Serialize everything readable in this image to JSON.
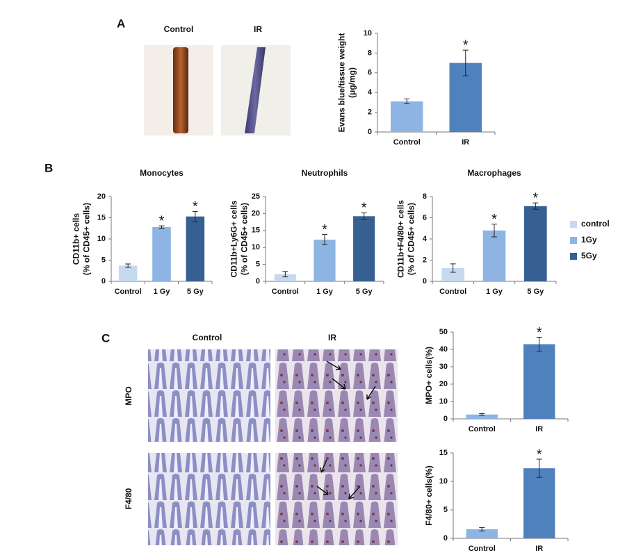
{
  "figure": {
    "panel_labels": [
      "A",
      "B",
      "C"
    ],
    "a_image_labels": [
      "Control",
      "IR"
    ],
    "c_column_labels": [
      "Control",
      "IR"
    ],
    "c_row_labels": [
      "MPO",
      "F4/80"
    ]
  },
  "chart_data": [
    {
      "type": "bar",
      "ylabel": [
        "Evans blue/tissue weight",
        "(μg/mg)"
      ],
      "categories": [
        "Control",
        "IR"
      ],
      "values": [
        3.1,
        7.0
      ],
      "errors": [
        0.25,
        1.3
      ],
      "colors": [
        "#8db4e2",
        "#4f81bd"
      ],
      "significance": [
        null,
        "*"
      ],
      "ylim": [
        0,
        10
      ],
      "yticks": [
        0,
        2,
        4,
        6,
        8,
        10
      ],
      "grid": false
    },
    {
      "type": "bar",
      "title": "Monocytes",
      "ylabel": [
        "CD11b+ cells",
        "(% of CD45+ cells)"
      ],
      "categories": [
        "Control",
        "1 Gy",
        "5 Gy"
      ],
      "values": [
        3.7,
        12.8,
        15.3
      ],
      "errors": [
        0.4,
        0.3,
        1.2
      ],
      "colors": [
        "#c6d9f1",
        "#8db4e2",
        "#366092"
      ],
      "significance": [
        null,
        "*",
        "*"
      ],
      "ylim": [
        0,
        20
      ],
      "yticks": [
        0,
        5,
        10,
        15,
        20
      ],
      "grid": false
    },
    {
      "type": "bar",
      "title": "Neutrophils",
      "ylabel": [
        "CD11b+Ly6G+ cells",
        "(% of CD45+ cells)"
      ],
      "categories": [
        "Control",
        "1 Gy",
        "5 Gy"
      ],
      "values": [
        2.1,
        12.3,
        19.2
      ],
      "errors": [
        0.8,
        1.5,
        1.0
      ],
      "colors": [
        "#c6d9f1",
        "#8db4e2",
        "#366092"
      ],
      "significance": [
        null,
        "*",
        "*"
      ],
      "ylim": [
        0,
        25
      ],
      "yticks": [
        0,
        5,
        10,
        15,
        20,
        25
      ],
      "grid": false
    },
    {
      "type": "bar",
      "title": "Macrophages",
      "ylabel": [
        "CD11b+F4/80+ cells",
        "(% of CD45+ cells)"
      ],
      "categories": [
        "Control",
        "1 Gy",
        "5 Gy"
      ],
      "values": [
        1.25,
        4.8,
        7.1
      ],
      "errors": [
        0.4,
        0.6,
        0.3
      ],
      "colors": [
        "#c6d9f1",
        "#8db4e2",
        "#366092"
      ],
      "significance": [
        null,
        "*",
        "*"
      ],
      "ylim": [
        0,
        8
      ],
      "yticks": [
        0,
        2,
        4,
        6,
        8
      ],
      "grid": false,
      "legend": [
        {
          "name": "control",
          "color": "#c6d9f1"
        },
        {
          "name": "1Gy",
          "color": "#8db4e2"
        },
        {
          "name": "5Gy",
          "color": "#366092"
        }
      ]
    },
    {
      "type": "bar",
      "ylabel": [
        "MPO+ cells(%)"
      ],
      "categories": [
        "Control",
        "IR"
      ],
      "values": [
        2.5,
        43
      ],
      "errors": [
        0.5,
        4
      ],
      "colors": [
        "#8db4e2",
        "#4f81bd"
      ],
      "significance": [
        null,
        "*"
      ],
      "ylim": [
        0,
        50
      ],
      "yticks": [
        0,
        10,
        20,
        30,
        40,
        50
      ],
      "grid": false
    },
    {
      "type": "bar",
      "ylabel": [
        "F4/80+ cells(%)"
      ],
      "categories": [
        "Control",
        "IR"
      ],
      "values": [
        1.6,
        12.3
      ],
      "errors": [
        0.3,
        1.6
      ],
      "colors": [
        "#8db4e2",
        "#4f81bd"
      ],
      "significance": [
        null,
        "*"
      ],
      "ylim": [
        0,
        15
      ],
      "yticks": [
        0,
        5,
        10,
        15
      ],
      "grid": false
    }
  ]
}
